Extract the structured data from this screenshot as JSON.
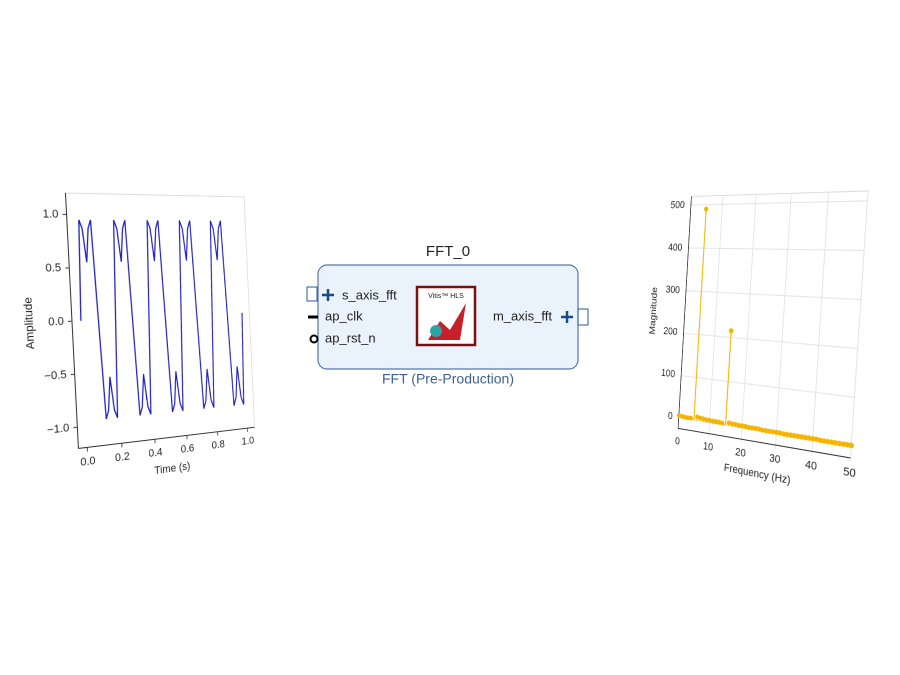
{
  "chart_data": [
    {
      "type": "line",
      "xlabel": "Time (s)",
      "ylabel": "Amplitude",
      "color": "#1f1fbf",
      "grid": false,
      "xlim": [
        -0.05,
        1.05
      ],
      "ylim": [
        -1.2,
        1.2
      ],
      "xticks": [
        {
          "value": 0,
          "label": "0.0"
        },
        {
          "value": 0.2,
          "label": "0.2"
        },
        {
          "value": 0.4,
          "label": "0.4"
        },
        {
          "value": 0.6,
          "label": "0.6"
        },
        {
          "value": 0.8,
          "label": "0.8"
        },
        {
          "value": 1,
          "label": "1.0"
        }
      ],
      "yticks": [
        {
          "value": -1,
          "label": "−1.0"
        },
        {
          "value": -0.5,
          "label": "−0.5"
        },
        {
          "value": 0,
          "label": "0.0"
        },
        {
          "value": 0.5,
          "label": "0.5"
        },
        {
          "value": 1,
          "label": "1.0"
        }
      ],
      "x": [
        0,
        0.017,
        0.033,
        0.05,
        0.067,
        0.083,
        0.1,
        0.117,
        0.133,
        0.15,
        0.167,
        0.183,
        0.2,
        0.217,
        0.233,
        0.25,
        0.267,
        0.283,
        0.3,
        0.317,
        0.333,
        0.35,
        0.367,
        0.383,
        0.4,
        0.417,
        0.433,
        0.45,
        0.467,
        0.483,
        0.5,
        0.517,
        0.533,
        0.55,
        0.567,
        0.583,
        0.6,
        0.617,
        0.633,
        0.65,
        0.667,
        0.683,
        0.7,
        0.717,
        0.733,
        0.75,
        0.767,
        0.783,
        0.8,
        0.817,
        0.833,
        0.85,
        0.867,
        0.883,
        0.9,
        0.917,
        0.933,
        0.95,
        0.967,
        0.983,
        1.0
      ],
      "values": [
        0,
        0.95,
        0.87,
        0.55,
        0.87,
        0.95,
        0,
        -0.95,
        -0.87,
        -0.55,
        -0.87,
        -0.95,
        0,
        0.95,
        0.87,
        0.55,
        0.87,
        0.95,
        0,
        -0.95,
        -0.87,
        -0.55,
        -0.87,
        -0.95,
        0,
        0.95,
        0.87,
        0.55,
        0.87,
        0.95,
        0,
        -0.95,
        -0.87,
        -0.55,
        -0.87,
        -0.95,
        0,
        0.95,
        0.87,
        0.55,
        0.87,
        0.95,
        0,
        -0.95,
        -0.87,
        -0.55,
        -0.87,
        -0.95,
        0,
        0.95,
        0.87,
        0.55,
        0.87,
        0.95,
        0,
        -0.95,
        -0.87,
        -0.55,
        -0.87,
        -0.95,
        0
      ]
    },
    {
      "type": "stem",
      "xlabel": "Frequency (Hz)",
      "ylabel": "Magnitude",
      "color": "#f5b400",
      "grid": true,
      "xlim": [
        0,
        50
      ],
      "ylim": [
        -25,
        520
      ],
      "xticks": [
        0,
        10,
        20,
        30,
        40,
        50
      ],
      "yticks": [
        0,
        100,
        200,
        300,
        400,
        500
      ],
      "x": [
        0,
        1,
        2,
        3,
        4,
        5,
        6,
        7,
        8,
        9,
        10,
        11,
        12,
        13,
        14,
        15,
        16,
        17,
        18,
        19,
        20,
        21,
        22,
        23,
        24,
        25,
        26,
        27,
        28,
        29,
        30,
        31,
        32,
        33,
        34,
        35,
        36,
        37,
        38,
        39,
        40,
        41,
        42,
        43,
        44,
        45,
        46,
        47,
        48,
        49,
        50
      ],
      "values": [
        6,
        5,
        4,
        4,
        4,
        490,
        9,
        8,
        7,
        6,
        6,
        5,
        5,
        5,
        4,
        215,
        7,
        6,
        6,
        5,
        5,
        5,
        4,
        4,
        4,
        4,
        3,
        3,
        3,
        3,
        3,
        3,
        2,
        2,
        2,
        2,
        2,
        2,
        2,
        2,
        2,
        2,
        1,
        1,
        1,
        1,
        1,
        1,
        1,
        1,
        1
      ]
    }
  ],
  "diagram": {
    "name": "FFT_0",
    "label": "FFT (Pre-Production)",
    "logo": "Vitis™ HLS",
    "inputs": [
      "s_axis_fft",
      "ap_clk",
      "ap_rst_n"
    ],
    "outputs": [
      "m_axis_fft"
    ]
  }
}
